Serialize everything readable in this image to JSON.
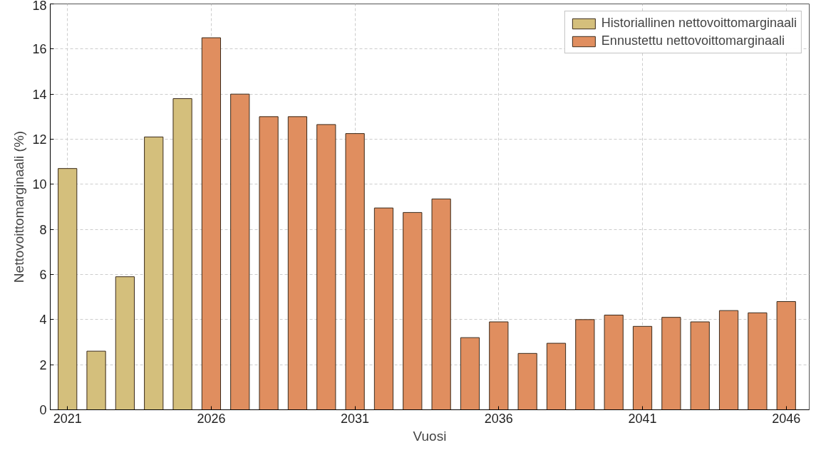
{
  "chart_data": {
    "type": "bar",
    "xlabel": "Vuosi",
    "ylabel": "Nettovoittomarginaali (%)",
    "series": [
      {
        "name": "Historiallinen nettovoittomarginaali",
        "color": "#d4bf7c",
        "x": [
          2021,
          2022,
          2023,
          2024,
          2025
        ],
        "values": [
          10.7,
          2.6,
          5.9,
          12.1,
          13.8
        ]
      },
      {
        "name": "Ennustettu nettovoittomarginaali",
        "color": "#e08e5f",
        "x": [
          2026,
          2027,
          2028,
          2029,
          2030,
          2031,
          2032,
          2033,
          2034,
          2035,
          2036,
          2037,
          2038,
          2039,
          2040,
          2041,
          2042,
          2043,
          2044,
          2045,
          2046
        ],
        "values": [
          16.5,
          14.0,
          13.0,
          13.0,
          12.65,
          12.25,
          8.95,
          8.75,
          9.35,
          3.2,
          3.9,
          2.5,
          2.95,
          4.0,
          4.2,
          3.7,
          4.1,
          3.9,
          4.4,
          4.3,
          4.8
        ]
      }
    ],
    "xlim": [
      2020.4,
      2046.8
    ],
    "xticks": [
      2021,
      2026,
      2031,
      2036,
      2041,
      2046
    ],
    "ylim": [
      0,
      18
    ],
    "yticks": [
      0,
      2,
      4,
      6,
      8,
      10,
      12,
      14,
      16,
      18
    ],
    "grid": true,
    "legend": "top right"
  }
}
